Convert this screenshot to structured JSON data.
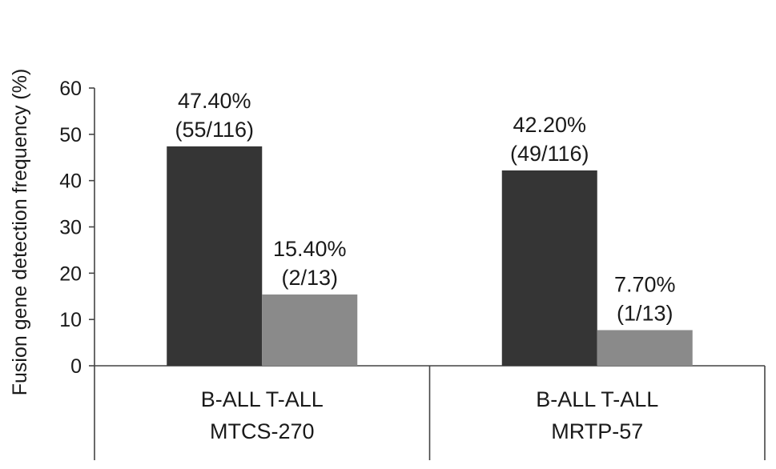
{
  "chart_data": {
    "type": "bar",
    "title": "",
    "ylabel": "Fusion gene detection frequency (%)",
    "ylim": [
      0,
      60
    ],
    "yticks": [
      0,
      10,
      20,
      30,
      40,
      50,
      60
    ],
    "grid": false,
    "legend": "none",
    "groups": [
      {
        "subcategory_line": "B-ALL T-ALL",
        "name": "MTCS-270",
        "bars": [
          {
            "category": "B-ALL",
            "value": 47.4,
            "label_pct": "47.40%",
            "label_count": "(55/116)"
          },
          {
            "category": "T-ALL",
            "value": 15.4,
            "label_pct": "15.40%",
            "label_count": "(2/13)"
          }
        ]
      },
      {
        "subcategory_line": "B-ALL T-ALL",
        "name": "MRTP-57",
        "bars": [
          {
            "category": "B-ALL",
            "value": 42.2,
            "label_pct": "42.20%",
            "label_count": "(49/116)"
          },
          {
            "category": "T-ALL",
            "value": 7.7,
            "label_pct": "7.70%",
            "label_count": "(1/13)"
          }
        ]
      }
    ],
    "colors": {
      "B-ALL": "#353535",
      "T-ALL": "#8a8a8a"
    }
  }
}
